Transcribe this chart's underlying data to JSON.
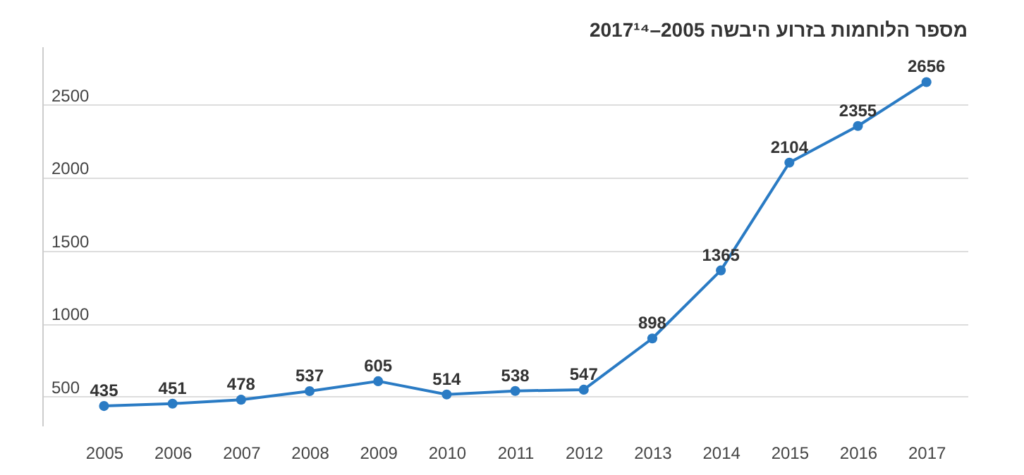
{
  "chart_data": {
    "type": "line",
    "title": "מספר הלוחמות בזרוע היבשה 2005–2017¹⁴",
    "categories": [
      "2005",
      "2006",
      "2007",
      "2008",
      "2009",
      "2010",
      "2011",
      "2012",
      "2013",
      "2014",
      "2015",
      "2016",
      "2017"
    ],
    "series": [
      {
        "color": "#2a7bc4",
        "values": [
          435,
          451,
          478,
          537,
          605,
          514,
          538,
          547,
          898,
          1365,
          2104,
          2355,
          2656
        ]
      }
    ],
    "ylim": [
      300,
      2900
    ],
    "yticks": [
      500,
      1000,
      1500,
      2000,
      2500
    ],
    "grid": "y",
    "data_labels": true,
    "marker": "circle",
    "line_style": "solid"
  }
}
